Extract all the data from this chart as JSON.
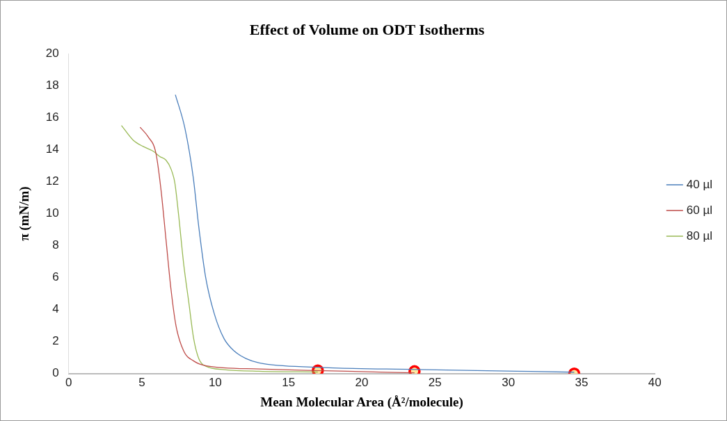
{
  "chart_data": {
    "type": "line",
    "title": "Effect of Volume on ODT Isotherms",
    "xlabel": "Mean Molecular Area (Å²/molecule)",
    "ylabel": "π (mN/m)",
    "xlim": [
      0,
      40
    ],
    "xticks": [
      0,
      5,
      10,
      15,
      20,
      25,
      30,
      35,
      40
    ],
    "ylim": [
      0,
      20
    ],
    "yticks": [
      0,
      2,
      4,
      6,
      8,
      10,
      12,
      14,
      16,
      18,
      20
    ],
    "grid": false,
    "legend": "right",
    "marker": "none",
    "line_style": "solid",
    "series": [
      {
        "name": "40 µl",
        "color": "#4a7ebb",
        "x": [
          7.28,
          7.93,
          8.5,
          8.88,
          9.34,
          9.94,
          10.6,
          11.3,
          12.1,
          13.0,
          16.9,
          23.7,
          34.5
        ],
        "values": [
          17.44,
          15.35,
          12.27,
          9.16,
          6.06,
          3.73,
          2.19,
          1.41,
          0.94,
          0.67,
          0.4,
          0.26,
          0.09
        ]
      },
      {
        "name": "60 µl",
        "color": "#be4b48",
        "x": [
          4.87,
          5.43,
          5.95,
          6.3,
          6.64,
          6.98,
          7.33,
          7.85,
          8.53,
          9.39,
          13.0,
          16.9,
          23.6
        ],
        "values": [
          15.41,
          14.8,
          13.8,
          11.5,
          8.39,
          5.29,
          2.96,
          1.41,
          0.79,
          0.49,
          0.29,
          0.19,
          0.05
        ]
      },
      {
        "name": "80 µl",
        "color": "#98b954",
        "x": [
          3.6,
          4.4,
          5.09,
          5.78,
          6.21,
          6.64,
          6.98,
          7.24,
          7.5,
          7.85,
          8.19,
          8.53,
          8.88,
          9.39,
          10.6,
          13.0,
          17.0
        ],
        "values": [
          15.52,
          14.6,
          14.2,
          13.9,
          13.58,
          13.35,
          12.8,
          11.95,
          9.94,
          6.84,
          4.51,
          2.19,
          0.94,
          0.45,
          0.25,
          0.15,
          0.1
        ]
      },
      {
        "type": "scatter",
        "color": "#ff0000",
        "marker": "circle",
        "x": [
          17.0,
          23.6,
          34.5
        ],
        "values": [
          0.2,
          0.15,
          0.0
        ]
      }
    ]
  }
}
